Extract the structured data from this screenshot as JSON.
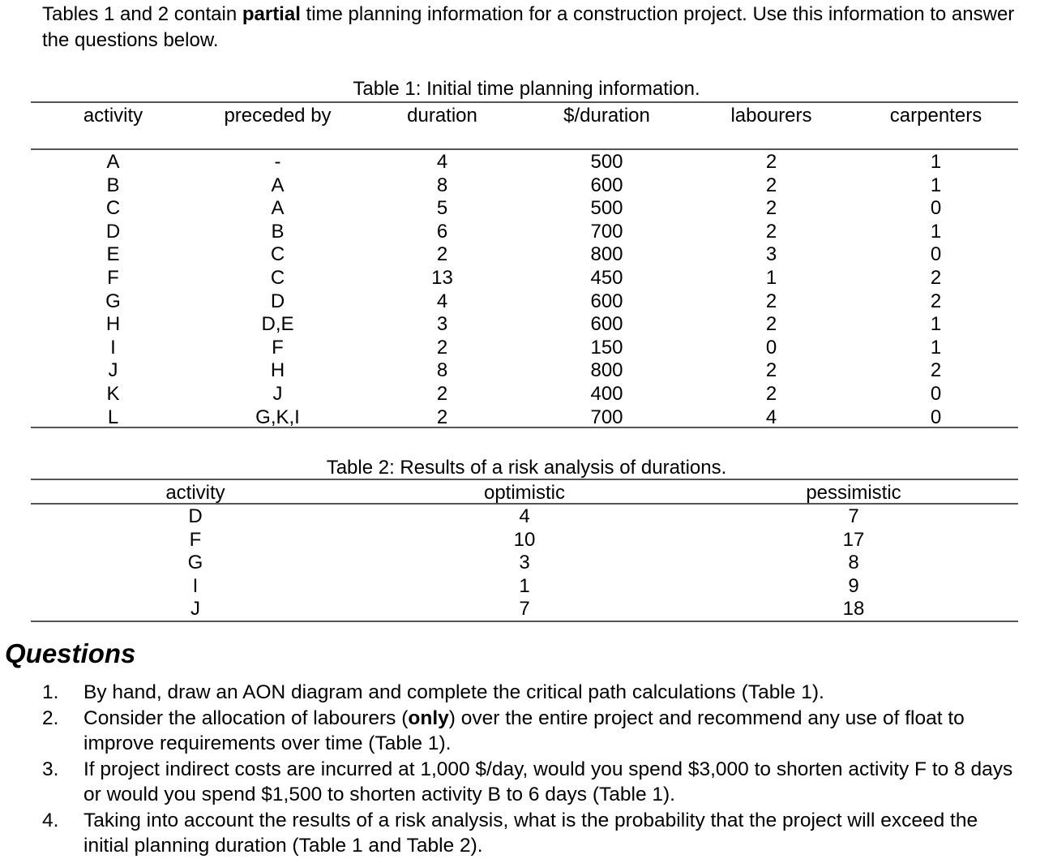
{
  "intro": {
    "before": "Tables 1 and 2 contain ",
    "bold": "partial",
    "after": " time planning information for a construction project. Use this information to answer the questions below."
  },
  "table1": {
    "caption": "Table 1: Initial time planning information.",
    "headers": [
      "activity",
      "preceded by",
      "duration",
      "$/duration",
      "labourers",
      "carpenters"
    ],
    "rows": [
      [
        "A",
        "-",
        "4",
        "500",
        "2",
        "1"
      ],
      [
        "B",
        "A",
        "8",
        "600",
        "2",
        "1"
      ],
      [
        "C",
        "A",
        "5",
        "500",
        "2",
        "0"
      ],
      [
        "D",
        "B",
        "6",
        "700",
        "2",
        "1"
      ],
      [
        "E",
        "C",
        "2",
        "800",
        "3",
        "0"
      ],
      [
        "F",
        "C",
        "13",
        "450",
        "1",
        "2"
      ],
      [
        "G",
        "D",
        "4",
        "600",
        "2",
        "2"
      ],
      [
        "H",
        "D,E",
        "3",
        "600",
        "2",
        "1"
      ],
      [
        "I",
        "F",
        "2",
        "150",
        "0",
        "1"
      ],
      [
        "J",
        "H",
        "8",
        "800",
        "2",
        "2"
      ],
      [
        "K",
        "J",
        "2",
        "400",
        "2",
        "0"
      ],
      [
        "L",
        "G,K,I",
        "2",
        "700",
        "4",
        "0"
      ]
    ]
  },
  "table2": {
    "caption": "Table 2: Results of a risk analysis of durations.",
    "headers": [
      "activity",
      "optimistic",
      "pessimistic"
    ],
    "rows": [
      [
        "D",
        "4",
        "7"
      ],
      [
        "F",
        "10",
        "17"
      ],
      [
        "G",
        "3",
        "8"
      ],
      [
        "I",
        "1",
        "9"
      ],
      [
        "J",
        "7",
        "18"
      ]
    ]
  },
  "questions": {
    "title": "Questions",
    "items": [
      {
        "num": "1.",
        "parts": [
          "By hand, draw an AON diagram and complete the critical path calculations (Table 1).",
          "",
          ""
        ]
      },
      {
        "num": "2.",
        "parts": [
          "Consider the allocation of labourers (",
          "only",
          ") over the entire project and recommend any use of float to improve requirements over time (Table 1)."
        ]
      },
      {
        "num": "3.",
        "parts": [
          "If project indirect costs are incurred at 1,000 $/day, would you spend $3,000 to shorten activity F to 8 days or would you spend $1,500 to shorten activity B to 6 days (Table 1).",
          "",
          ""
        ]
      },
      {
        "num": "4.",
        "parts": [
          "Taking into account the results of a risk analysis, what is the probability that the project will exceed the initial planning duration (Table 1 and Table 2).",
          "",
          ""
        ]
      }
    ]
  }
}
